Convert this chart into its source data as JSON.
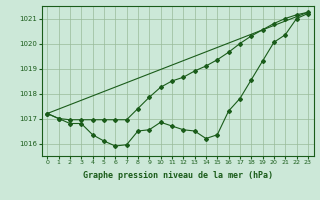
{
  "xlabel": "Graphe pression niveau de la mer (hPa)",
  "background_color": "#cce8d8",
  "grid_color": "#99bb99",
  "line_color": "#1a5c1a",
  "marker": "D",
  "markersize": 2.0,
  "linewidth": 0.8,
  "ylim": [
    1015.5,
    1021.5
  ],
  "xlim": [
    -0.5,
    23.5
  ],
  "yticks": [
    1016,
    1017,
    1018,
    1019,
    1020,
    1021
  ],
  "xticks": [
    0,
    1,
    2,
    3,
    4,
    5,
    6,
    7,
    8,
    9,
    10,
    11,
    12,
    13,
    14,
    15,
    16,
    17,
    18,
    19,
    20,
    21,
    22,
    23
  ],
  "series1": [
    1017.2,
    1017.0,
    1016.8,
    1016.8,
    1016.35,
    1016.1,
    1015.9,
    1015.95,
    1016.5,
    1016.55,
    1016.85,
    1016.7,
    1016.55,
    1016.5,
    1016.2,
    1016.35,
    1017.3,
    1017.8,
    1018.55,
    1019.3,
    1020.05,
    1020.35,
    1021.0,
    1021.2
  ],
  "series2": [
    1017.2,
    1017.0,
    1016.95,
    1016.95,
    1016.95,
    1016.95,
    1016.95,
    1016.95,
    1017.4,
    1017.85,
    1018.25,
    1018.5,
    1018.65,
    1018.9,
    1019.1,
    1019.35,
    1019.65,
    1020.0,
    1020.3,
    1020.55,
    1020.8,
    1021.0,
    1021.15,
    1021.25
  ],
  "series3_x": [
    0,
    23
  ],
  "series3_y": [
    1017.2,
    1021.25
  ]
}
